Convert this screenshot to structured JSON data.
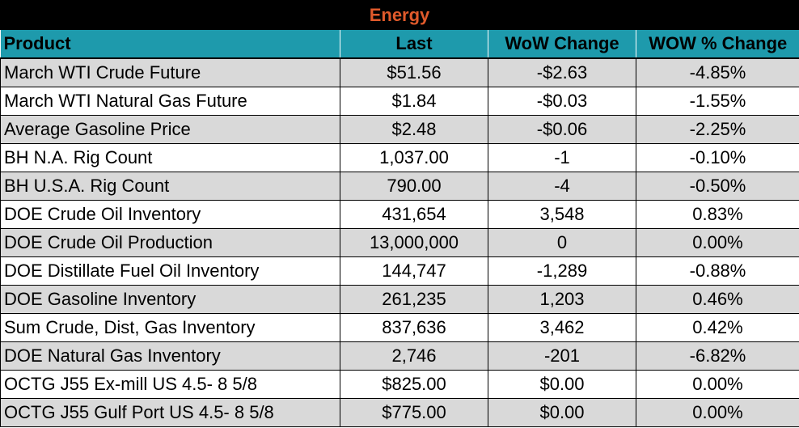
{
  "title": "Energy",
  "colors": {
    "title_bg": "#000000",
    "title_text": "#e05a2b",
    "header_bg": "#1e9aac",
    "row_shaded": "#d9d9d9",
    "row_plain": "#ffffff"
  },
  "columns": [
    "Product",
    "Last",
    "WoW Change",
    "WOW % Change"
  ],
  "rows": [
    {
      "product": "March WTI Crude Future",
      "last": "$51.56",
      "wow": "-$2.63",
      "pct": "-4.85%"
    },
    {
      "product": "March WTI Natural Gas Future",
      "last": "$1.84",
      "wow": "-$0.03",
      "pct": "-1.55%"
    },
    {
      "product": "Average Gasoline Price",
      "last": "$2.48",
      "wow": "-$0.06",
      "pct": "-2.25%"
    },
    {
      "product": "BH N.A. Rig Count",
      "last": "1,037.00",
      "wow": "-1",
      "pct": "-0.10%"
    },
    {
      "product": "BH U.S.A. Rig Count",
      "last": "790.00",
      "wow": "-4",
      "pct": "-0.50%"
    },
    {
      "product": "DOE Crude Oil Inventory",
      "last": "431,654",
      "wow": "3,548",
      "pct": "0.83%"
    },
    {
      "product": "DOE Crude Oil Production",
      "last": "13,000,000",
      "wow": "0",
      "pct": "0.00%"
    },
    {
      "product": "DOE Distillate Fuel Oil Inventory",
      "last": "144,747",
      "wow": "-1,289",
      "pct": "-0.88%"
    },
    {
      "product": "DOE Gasoline Inventory",
      "last": "261,235",
      "wow": "1,203",
      "pct": "0.46%"
    },
    {
      "product": "Sum Crude, Dist, Gas Inventory",
      "last": "837,636",
      "wow": "3,462",
      "pct": "0.42%"
    },
    {
      "product": "DOE Natural Gas Inventory",
      "last": "2,746",
      "wow": "-201",
      "pct": "-6.82%"
    },
    {
      "product": "OCTG J55 Ex-mill US 4.5- 8 5/8",
      "last": "$825.00",
      "wow": "$0.00",
      "pct": "0.00%"
    },
    {
      "product": "OCTG J55 Gulf Port US 4.5- 8 5/8",
      "last": "$775.00",
      "wow": "$0.00",
      "pct": "0.00%"
    }
  ]
}
